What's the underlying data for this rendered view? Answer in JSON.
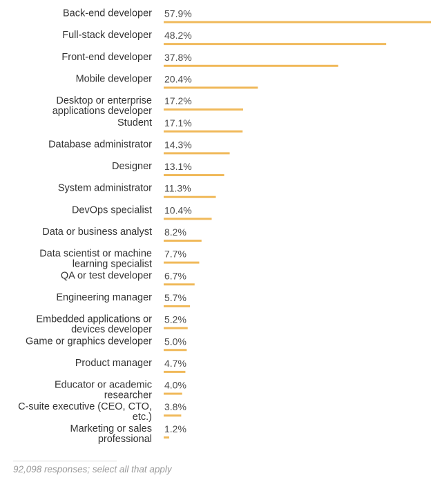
{
  "chart_data": {
    "type": "bar",
    "orientation": "horizontal",
    "categories": [
      "Back-end developer",
      "Full-stack developer",
      "Front-end developer",
      "Mobile developer",
      "Desktop or enterprise applications developer",
      "Student",
      "Database administrator",
      "Designer",
      "System administrator",
      "DevOps specialist",
      "Data or business analyst",
      "Data scientist or machine learning specialist",
      "QA or test developer",
      "Engineering manager",
      "Embedded applications or devices developer",
      "Game or graphics developer",
      "Product manager",
      "Educator or academic researcher",
      "C-suite executive (CEO, CTO, etc.)",
      "Marketing or sales professional"
    ],
    "label_lines": [
      [
        "Back-end developer"
      ],
      [
        "Full-stack developer"
      ],
      [
        "Front-end developer"
      ],
      [
        "Mobile developer"
      ],
      [
        "Desktop or enterprise",
        "applications developer"
      ],
      [
        "Student"
      ],
      [
        "Database administrator"
      ],
      [
        "Designer"
      ],
      [
        "System administrator"
      ],
      [
        "DevOps specialist"
      ],
      [
        "Data or business analyst"
      ],
      [
        "Data scientist or machine",
        "learning specialist"
      ],
      [
        "QA or test developer"
      ],
      [
        "Engineering manager"
      ],
      [
        "Embedded applications or",
        "devices developer"
      ],
      [
        "Game or graphics developer"
      ],
      [
        "Product manager"
      ],
      [
        "Educator or academic",
        "researcher"
      ],
      [
        "C-suite executive (CEO, CTO,",
        "etc.)"
      ],
      [
        "Marketing or sales",
        "professional"
      ]
    ],
    "values": [
      57.9,
      48.2,
      37.8,
      20.4,
      17.2,
      17.1,
      14.3,
      13.1,
      11.3,
      10.4,
      8.2,
      7.7,
      6.7,
      5.7,
      5.2,
      5.0,
      4.7,
      4.0,
      3.8,
      1.2
    ],
    "value_labels": [
      "57.9%",
      "48.2%",
      "37.8%",
      "20.4%",
      "17.2%",
      "17.1%",
      "14.3%",
      "13.1%",
      "11.3%",
      "10.4%",
      "8.2%",
      "7.7%",
      "6.7%",
      "5.7%",
      "5.2%",
      "5.0%",
      "4.7%",
      "4.0%",
      "3.8%",
      "1.2%"
    ],
    "unit": "%",
    "xlim": [
      0,
      57.9
    ],
    "bar_color": "#f0b95a",
    "title": "",
    "xlabel": "",
    "ylabel": "",
    "grid": false
  },
  "footnote": "92,098 responses; select all that apply"
}
